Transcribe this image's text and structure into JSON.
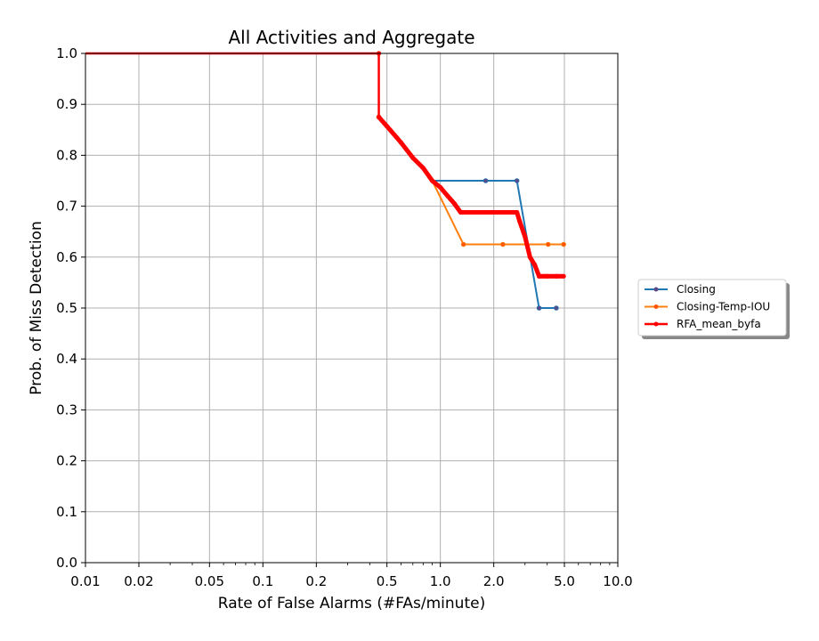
{
  "chart_data": {
    "type": "line",
    "title": "All Activities and Aggregate",
    "xlabel": "Rate of False Alarms (#FAs/minute)",
    "ylabel": "Prob. of Miss Detection",
    "xscale": "log",
    "xlim": [
      0.01,
      10.0
    ],
    "ylim": [
      0.0,
      1.0
    ],
    "xticks": [
      0.01,
      0.02,
      0.05,
      0.1,
      0.2,
      0.5,
      1.0,
      2.0,
      5.0,
      10.0
    ],
    "xtick_labels": [
      "0.01",
      "0.02",
      "0.05",
      "0.1",
      "0.2",
      "0.5",
      "1.0",
      "2.0",
      "5.0",
      "10.0"
    ],
    "yticks": [
      0.0,
      0.1,
      0.2,
      0.3,
      0.4,
      0.5,
      0.6,
      0.7,
      0.8,
      0.9,
      1.0
    ],
    "ytick_labels": [
      "0.0",
      "0.1",
      "0.2",
      "0.3",
      "0.4",
      "0.5",
      "0.6",
      "0.7",
      "0.8",
      "0.9",
      "1.0"
    ],
    "grid": true,
    "legend_position": "outside-right",
    "series": [
      {
        "name": "Closing",
        "color": "#1f77b4",
        "marker_color": "#5a4a8a",
        "x": [
          0.01,
          0.45,
          0.45,
          0.9,
          1.8,
          2.7,
          3.6,
          4.5
        ],
        "y": [
          1.0,
          1.0,
          0.875,
          0.75,
          0.75,
          0.75,
          0.5,
          0.5
        ],
        "markers": [
          [
            0.45,
            0.875
          ],
          [
            1.8,
            0.75
          ],
          [
            2.7,
            0.75
          ],
          [
            3.6,
            0.5
          ],
          [
            4.5,
            0.5
          ]
        ]
      },
      {
        "name": "Closing-Temp-IOU",
        "color": "#ff7f0e",
        "marker_color": "#ff5500",
        "x": [
          0.01,
          0.45,
          0.45,
          0.9,
          1.35,
          2.25,
          4.05,
          4.95
        ],
        "y": [
          1.0,
          1.0,
          0.875,
          0.75,
          0.625,
          0.625,
          0.625,
          0.625
        ],
        "markers": [
          [
            0.45,
            0.875
          ],
          [
            1.35,
            0.625
          ],
          [
            2.25,
            0.625
          ],
          [
            4.05,
            0.625
          ],
          [
            4.95,
            0.625
          ]
        ]
      },
      {
        "name": "RFA_mean_byfa",
        "color": "#ff0000",
        "x": [
          0.01,
          0.45,
          0.45,
          0.5,
          0.6,
          0.7,
          0.8,
          0.9,
          1.0,
          1.1,
          1.2,
          1.3,
          2.0,
          2.7,
          2.8,
          3.0,
          3.2,
          3.4,
          3.6,
          4.0,
          4.5,
          4.95
        ],
        "y": [
          1.0,
          1.0,
          0.875,
          0.857,
          0.825,
          0.795,
          0.775,
          0.75,
          0.737,
          0.72,
          0.705,
          0.688,
          0.688,
          0.688,
          0.67,
          0.64,
          0.6,
          0.585,
          0.5625,
          0.5625,
          0.5625,
          0.5625
        ],
        "dense_markers": true
      }
    ]
  }
}
